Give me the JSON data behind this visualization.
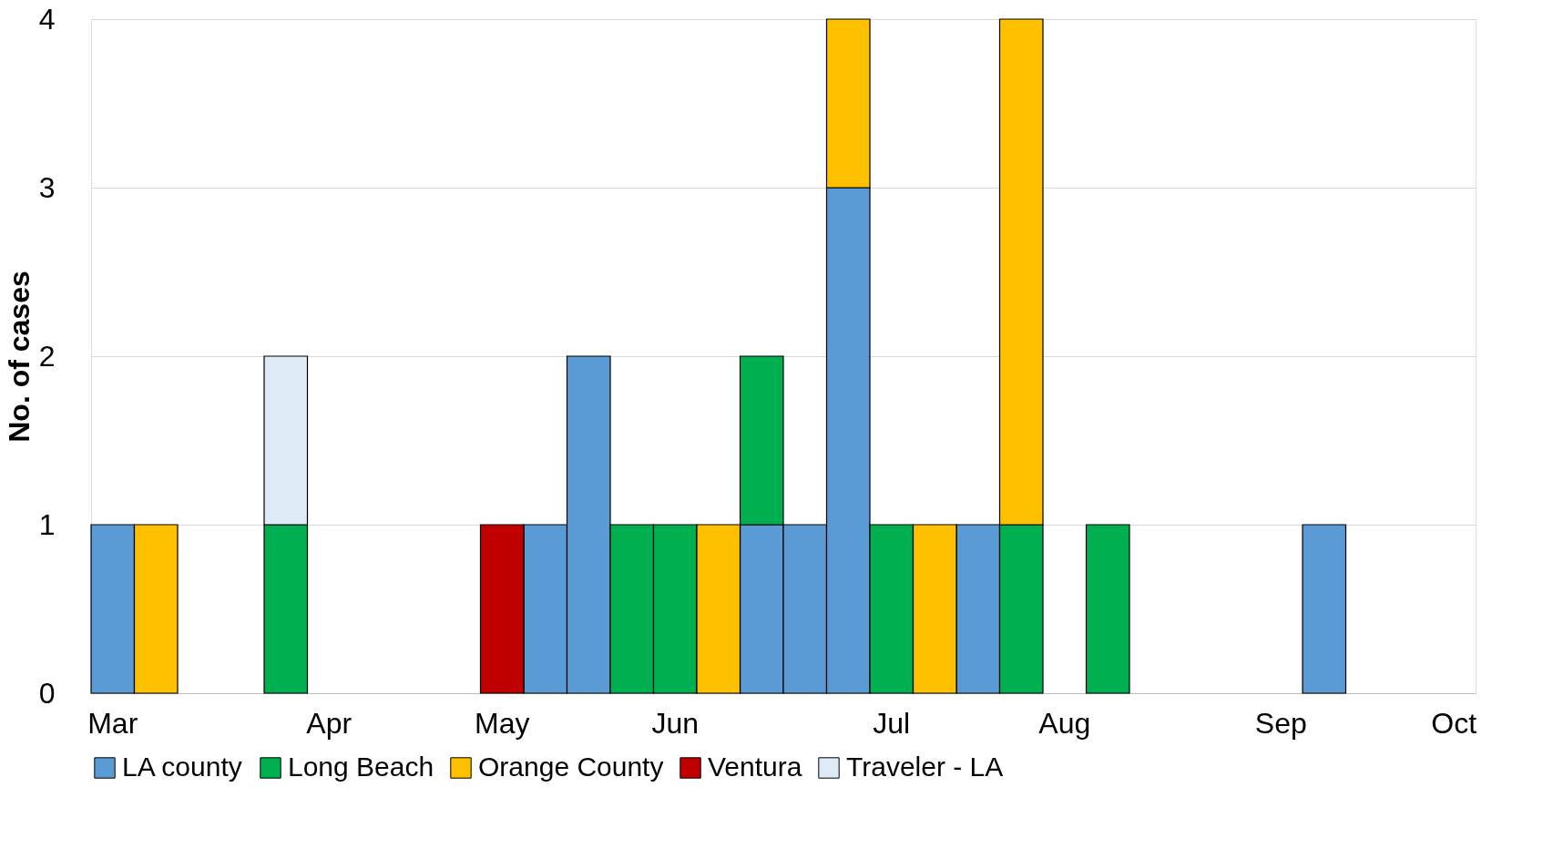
{
  "chart_data": {
    "type": "bar",
    "ylabel": "No. of cases",
    "stacked": true,
    "categories": [
      "Mar",
      null,
      null,
      null,
      null,
      "Apr",
      null,
      null,
      null,
      "May",
      null,
      null,
      null,
      "Jun",
      null,
      null,
      null,
      null,
      "Jul",
      null,
      null,
      null,
      "Aug",
      null,
      null,
      null,
      null,
      "Sep",
      null,
      null,
      null,
      "Oct"
    ],
    "series": [
      {
        "name": "LA county",
        "color": "#5b9bd5",
        "values": [
          1,
          null,
          null,
          null,
          null,
          null,
          null,
          null,
          null,
          null,
          1,
          2,
          null,
          null,
          null,
          1,
          1,
          3,
          null,
          null,
          1,
          null,
          null,
          null,
          null,
          null,
          null,
          null,
          1,
          null,
          null,
          null
        ]
      },
      {
        "name": "Long Beach",
        "color": "#00b050",
        "values": [
          null,
          null,
          null,
          null,
          1,
          null,
          null,
          null,
          null,
          null,
          null,
          null,
          1,
          1,
          null,
          1,
          null,
          null,
          1,
          null,
          null,
          1,
          null,
          1,
          null,
          null,
          null,
          null,
          null,
          null,
          null,
          null
        ]
      },
      {
        "name": "Orange County",
        "color": "#ffc000",
        "values": [
          null,
          1,
          null,
          null,
          null,
          null,
          null,
          null,
          null,
          null,
          null,
          null,
          null,
          null,
          1,
          null,
          null,
          1,
          null,
          1,
          null,
          3,
          null,
          null,
          null,
          null,
          null,
          null,
          null,
          null,
          null,
          null
        ]
      },
      {
        "name": "Ventura",
        "color": "#c00000",
        "values": [
          null,
          null,
          null,
          null,
          null,
          null,
          null,
          null,
          null,
          1,
          null,
          null,
          null,
          null,
          null,
          null,
          null,
          null,
          null,
          null,
          null,
          null,
          null,
          null,
          null,
          null,
          null,
          null,
          null,
          null,
          null,
          null
        ]
      },
      {
        "name": "Traveler - LA",
        "color": "#deebf7",
        "values": [
          null,
          null,
          null,
          null,
          1,
          null,
          null,
          null,
          null,
          null,
          null,
          null,
          null,
          null,
          null,
          null,
          null,
          null,
          null,
          null,
          null,
          null,
          null,
          null,
          null,
          null,
          null,
          null,
          null,
          null,
          null,
          null
        ]
      }
    ],
    "ylim": [
      0,
      4
    ],
    "yticks": [
      0,
      1,
      2,
      3,
      4
    ],
    "grid": "y",
    "legend": "bottom"
  }
}
